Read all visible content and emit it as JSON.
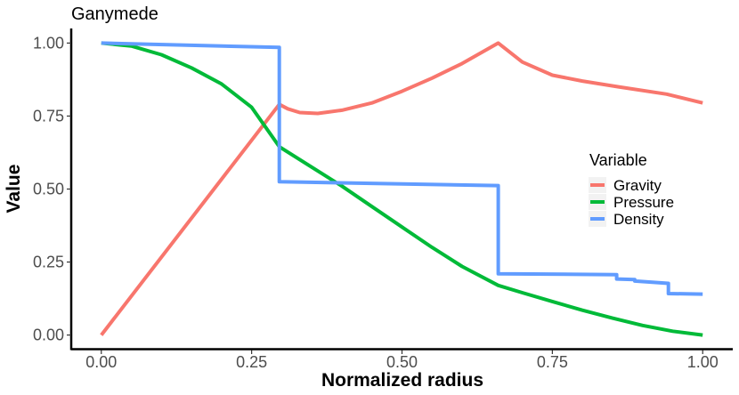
{
  "chart_data": {
    "type": "line",
    "title": "Ganymede",
    "xlabel": "Normalized radius",
    "ylabel": "Value",
    "xlim": [
      -0.05,
      1.05
    ],
    "ylim": [
      -0.05,
      1.05
    ],
    "x_ticks": [
      0.0,
      0.25,
      0.5,
      0.75,
      1.0
    ],
    "x_tick_labels": [
      "0.00",
      "0.25",
      "0.50",
      "0.75",
      "1.00"
    ],
    "y_ticks": [
      0.0,
      0.25,
      0.5,
      0.75,
      1.0
    ],
    "y_tick_labels": [
      "0.00",
      "0.25",
      "0.50",
      "0.75",
      "1.00"
    ],
    "grid": false,
    "legend": {
      "title": "Variable",
      "placement": "right",
      "entries": [
        "Gravity",
        "Pressure",
        "Density"
      ]
    },
    "series": [
      {
        "name": "Gravity",
        "color": "#F8766D",
        "points": [
          [
            0.0,
            0.0
          ],
          [
            0.296,
            0.79
          ],
          [
            0.31,
            0.775
          ],
          [
            0.33,
            0.762
          ],
          [
            0.36,
            0.759
          ],
          [
            0.4,
            0.77
          ],
          [
            0.45,
            0.795
          ],
          [
            0.5,
            0.835
          ],
          [
            0.55,
            0.88
          ],
          [
            0.6,
            0.93
          ],
          [
            0.66,
            1.0
          ],
          [
            0.7,
            0.935
          ],
          [
            0.75,
            0.89
          ],
          [
            0.8,
            0.87
          ],
          [
            0.86,
            0.85
          ],
          [
            0.94,
            0.825
          ],
          [
            1.0,
            0.795
          ]
        ]
      },
      {
        "name": "Pressure",
        "color": "#00BA38",
        "points": [
          [
            0.0,
            1.0
          ],
          [
            0.05,
            0.99
          ],
          [
            0.1,
            0.96
          ],
          [
            0.15,
            0.915
          ],
          [
            0.2,
            0.86
          ],
          [
            0.25,
            0.78
          ],
          [
            0.296,
            0.645
          ],
          [
            0.35,
            0.575
          ],
          [
            0.4,
            0.51
          ],
          [
            0.45,
            0.44
          ],
          [
            0.5,
            0.37
          ],
          [
            0.55,
            0.3
          ],
          [
            0.6,
            0.235
          ],
          [
            0.66,
            0.17
          ],
          [
            0.7,
            0.145
          ],
          [
            0.75,
            0.115
          ],
          [
            0.8,
            0.085
          ],
          [
            0.85,
            0.058
          ],
          [
            0.9,
            0.033
          ],
          [
            0.95,
            0.013
          ],
          [
            1.0,
            0.0
          ]
        ]
      },
      {
        "name": "Density",
        "color": "#619CFF",
        "points": [
          [
            0.0,
            1.0
          ],
          [
            0.296,
            0.985
          ],
          [
            0.296,
            0.525
          ],
          [
            0.66,
            0.512
          ],
          [
            0.66,
            0.21
          ],
          [
            0.857,
            0.207
          ],
          [
            0.857,
            0.192
          ],
          [
            0.887,
            0.19
          ],
          [
            0.887,
            0.185
          ],
          [
            0.943,
            0.177
          ],
          [
            0.943,
            0.142
          ],
          [
            1.0,
            0.14
          ]
        ]
      }
    ]
  }
}
